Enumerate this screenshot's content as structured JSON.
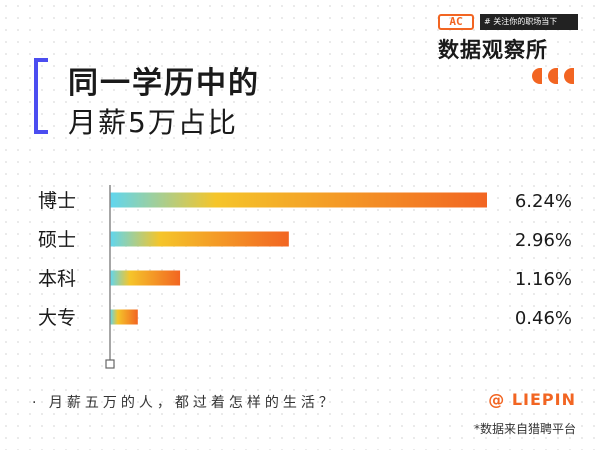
{
  "header": {
    "title_line1": "同一学历中的",
    "title_line2": "月薪5万占比",
    "accent_color": "#4b4df0"
  },
  "logo": {
    "badge": "AC",
    "tagline": "# 关注你的职场当下",
    "name": "数据观察所"
  },
  "footer": {
    "question": "· 月薪五万的人，都过着怎样的生活？",
    "brand": "@ LIEPIN",
    "source": "*数据来自猎聘平台"
  },
  "chart_data": {
    "type": "bar",
    "orientation": "horizontal",
    "categories": [
      "博士",
      "硕士",
      "本科",
      "大专"
    ],
    "values": [
      6.24,
      2.96,
      1.16,
      0.46
    ],
    "value_labels": [
      "6.24%",
      "2.96%",
      "1.16%",
      "0.46%"
    ],
    "unit": "%",
    "xlim": [
      0,
      6.24
    ],
    "grid": false,
    "gradient_colors": [
      "#5fd6f0",
      "#f5c52a",
      "#f26522"
    ]
  }
}
